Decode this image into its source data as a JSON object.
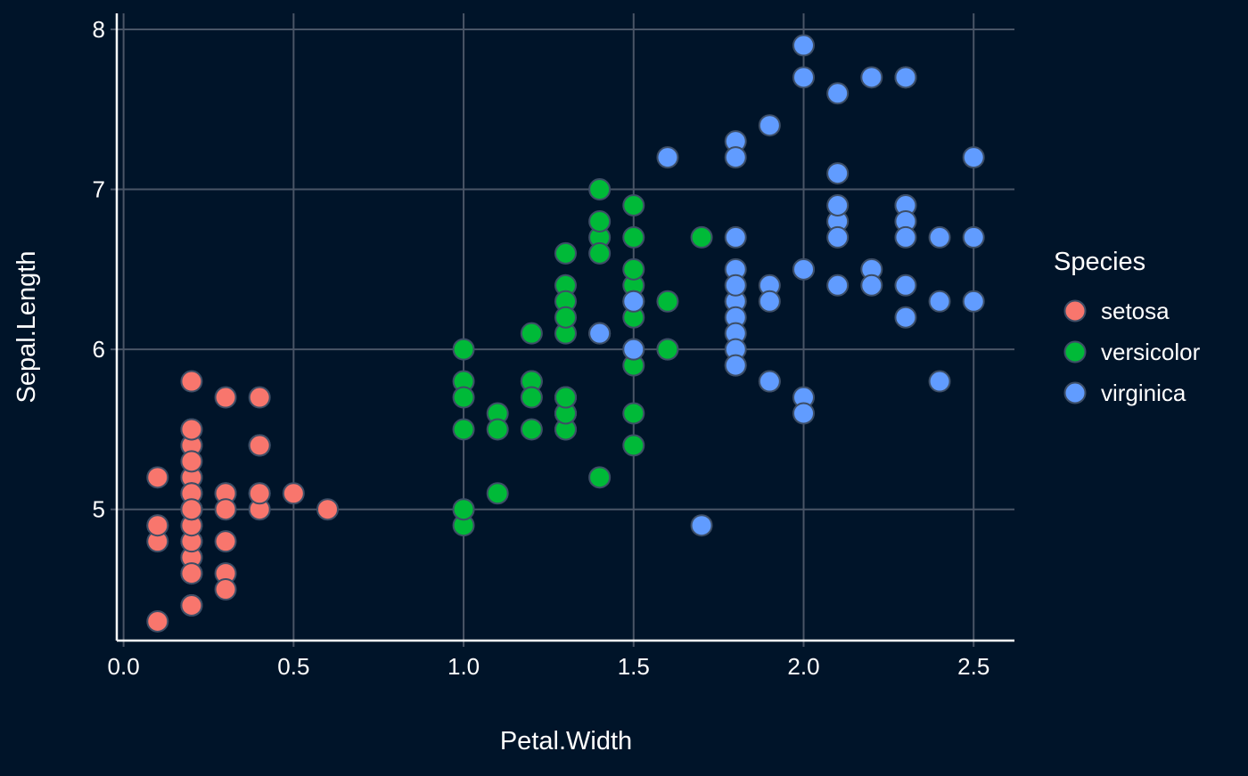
{
  "chart_data": {
    "type": "scatter",
    "title": "",
    "xlabel": "Petal.Width",
    "ylabel": "Sepal.Length",
    "xlim": [
      -0.02,
      2.62
    ],
    "ylim": [
      4.18,
      8.1
    ],
    "x_ticks": [
      "0.0",
      "0.5",
      "1.0",
      "1.5",
      "2.0",
      "2.5"
    ],
    "x_tick_values": [
      0,
      0.5,
      1.0,
      1.5,
      2.0,
      2.5
    ],
    "y_ticks": [
      "5",
      "6",
      "7",
      "8"
    ],
    "y_tick_values": [
      5,
      6,
      7,
      8
    ],
    "grid": true,
    "legend": {
      "title": "Species",
      "placement": "right"
    },
    "colors": {
      "background": "#001429",
      "grid": "#4a5566",
      "axis": "#ffffff",
      "text": "#ffffff",
      "point_outline": "#3d4e66"
    },
    "series": [
      {
        "name": "setosa",
        "color": "#f8766d",
        "points": [
          [
            0.2,
            5.1
          ],
          [
            0.2,
            4.9
          ],
          [
            0.2,
            4.7
          ],
          [
            0.2,
            4.6
          ],
          [
            0.2,
            5.0
          ],
          [
            0.4,
            5.4
          ],
          [
            0.3,
            4.6
          ],
          [
            0.2,
            5.0
          ],
          [
            0.2,
            4.4
          ],
          [
            0.1,
            4.9
          ],
          [
            0.2,
            5.4
          ],
          [
            0.2,
            4.8
          ],
          [
            0.1,
            4.8
          ],
          [
            0.1,
            4.3
          ],
          [
            0.2,
            5.8
          ],
          [
            0.4,
            5.7
          ],
          [
            0.4,
            5.4
          ],
          [
            0.3,
            5.1
          ],
          [
            0.3,
            5.7
          ],
          [
            0.3,
            5.1
          ],
          [
            0.2,
            5.4
          ],
          [
            0.4,
            5.1
          ],
          [
            0.2,
            4.6
          ],
          [
            0.5,
            5.1
          ],
          [
            0.2,
            4.8
          ],
          [
            0.2,
            5.0
          ],
          [
            0.4,
            5.0
          ],
          [
            0.2,
            5.2
          ],
          [
            0.2,
            5.2
          ],
          [
            0.2,
            4.7
          ],
          [
            0.2,
            4.8
          ],
          [
            0.4,
            5.4
          ],
          [
            0.1,
            5.2
          ],
          [
            0.2,
            5.5
          ],
          [
            0.2,
            4.9
          ],
          [
            0.2,
            5.0
          ],
          [
            0.2,
            5.5
          ],
          [
            0.1,
            4.9
          ],
          [
            0.2,
            4.4
          ],
          [
            0.2,
            5.1
          ],
          [
            0.3,
            5.0
          ],
          [
            0.3,
            4.5
          ],
          [
            0.2,
            4.4
          ],
          [
            0.6,
            5.0
          ],
          [
            0.4,
            5.1
          ],
          [
            0.3,
            4.8
          ],
          [
            0.2,
            5.1
          ],
          [
            0.2,
            4.6
          ],
          [
            0.2,
            5.3
          ],
          [
            0.2,
            5.0
          ]
        ]
      },
      {
        "name": "versicolor",
        "color": "#00ba38",
        "points": [
          [
            1.4,
            7.0
          ],
          [
            1.5,
            6.4
          ],
          [
            1.5,
            6.9
          ],
          [
            1.3,
            5.5
          ],
          [
            1.5,
            6.5
          ],
          [
            1.3,
            5.7
          ],
          [
            1.6,
            6.3
          ],
          [
            1.0,
            4.9
          ],
          [
            1.3,
            6.6
          ],
          [
            1.4,
            5.2
          ],
          [
            1.0,
            5.0
          ],
          [
            1.5,
            5.9
          ],
          [
            1.0,
            6.0
          ],
          [
            1.4,
            6.1
          ],
          [
            1.3,
            5.6
          ],
          [
            1.4,
            6.7
          ],
          [
            1.5,
            5.6
          ],
          [
            1.0,
            5.8
          ],
          [
            1.5,
            6.2
          ],
          [
            1.1,
            5.6
          ],
          [
            1.8,
            5.9
          ],
          [
            1.3,
            6.1
          ],
          [
            1.5,
            6.3
          ],
          [
            1.2,
            6.1
          ],
          [
            1.3,
            6.4
          ],
          [
            1.4,
            6.6
          ],
          [
            1.4,
            6.8
          ],
          [
            1.7,
            6.7
          ],
          [
            1.5,
            6.0
          ],
          [
            1.0,
            5.7
          ],
          [
            1.1,
            5.5
          ],
          [
            1.0,
            5.5
          ],
          [
            1.2,
            5.8
          ],
          [
            1.6,
            6.0
          ],
          [
            1.5,
            5.4
          ],
          [
            1.6,
            6.0
          ],
          [
            1.5,
            6.7
          ],
          [
            1.3,
            6.3
          ],
          [
            1.3,
            5.6
          ],
          [
            1.3,
            5.5
          ],
          [
            1.2,
            5.5
          ],
          [
            1.4,
            6.1
          ],
          [
            1.2,
            5.8
          ],
          [
            1.0,
            5.0
          ],
          [
            1.3,
            5.6
          ],
          [
            1.2,
            5.7
          ],
          [
            1.3,
            5.7
          ],
          [
            1.3,
            6.2
          ],
          [
            1.1,
            5.1
          ],
          [
            1.3,
            5.7
          ]
        ]
      },
      {
        "name": "virginica",
        "color": "#619cff",
        "points": [
          [
            2.5,
            6.3
          ],
          [
            1.9,
            5.8
          ],
          [
            2.1,
            7.1
          ],
          [
            1.8,
            6.3
          ],
          [
            2.2,
            6.5
          ],
          [
            2.1,
            7.6
          ],
          [
            1.7,
            4.9
          ],
          [
            1.8,
            7.3
          ],
          [
            1.8,
            6.7
          ],
          [
            2.5,
            7.2
          ],
          [
            2.0,
            6.5
          ],
          [
            1.9,
            6.4
          ],
          [
            2.1,
            6.8
          ],
          [
            2.0,
            5.7
          ],
          [
            2.4,
            5.8
          ],
          [
            2.3,
            6.4
          ],
          [
            1.8,
            6.5
          ],
          [
            2.2,
            7.7
          ],
          [
            2.3,
            7.7
          ],
          [
            1.5,
            6.0
          ],
          [
            2.3,
            6.9
          ],
          [
            2.0,
            5.6
          ],
          [
            2.0,
            7.7
          ],
          [
            1.8,
            6.3
          ],
          [
            2.1,
            6.7
          ],
          [
            1.8,
            7.2
          ],
          [
            1.8,
            6.2
          ],
          [
            1.8,
            6.1
          ],
          [
            2.1,
            6.4
          ],
          [
            1.6,
            7.2
          ],
          [
            1.9,
            7.4
          ],
          [
            2.0,
            7.9
          ],
          [
            2.2,
            6.4
          ],
          [
            1.5,
            6.3
          ],
          [
            1.4,
            6.1
          ],
          [
            2.3,
            7.7
          ],
          [
            2.4,
            6.3
          ],
          [
            1.8,
            6.4
          ],
          [
            1.8,
            6.0
          ],
          [
            2.1,
            6.9
          ],
          [
            2.4,
            6.7
          ],
          [
            2.3,
            6.9
          ],
          [
            1.9,
            5.8
          ],
          [
            2.3,
            6.8
          ],
          [
            2.5,
            6.7
          ],
          [
            2.3,
            6.7
          ],
          [
            1.9,
            6.3
          ],
          [
            2.0,
            6.5
          ],
          [
            2.3,
            6.2
          ],
          [
            1.8,
            5.9
          ]
        ]
      }
    ]
  }
}
